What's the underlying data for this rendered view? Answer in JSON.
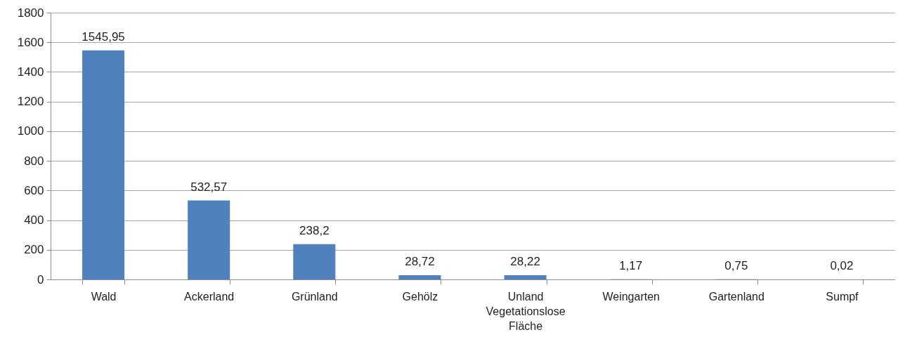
{
  "chart_data": {
    "type": "bar",
    "categories": [
      "Wald",
      "Ackerland",
      "Grünland",
      "Gehölz",
      "Unland Vegetationslose Fläche",
      "Weingarten",
      "Gartenland",
      "Sumpf"
    ],
    "values": [
      1545.95,
      532.57,
      238.2,
      28.72,
      28.22,
      1.17,
      0.75,
      0.02
    ],
    "value_labels": [
      "1545,95",
      "532,57",
      "238,2",
      "28,72",
      "28,22",
      "1,17",
      "0,75",
      "0,02"
    ],
    "color": "#4f81bd",
    "ylim": [
      0,
      1800
    ],
    "yticks": [
      0,
      200,
      400,
      600,
      800,
      1000,
      1200,
      1400,
      1600,
      1800
    ],
    "grid": "y"
  }
}
